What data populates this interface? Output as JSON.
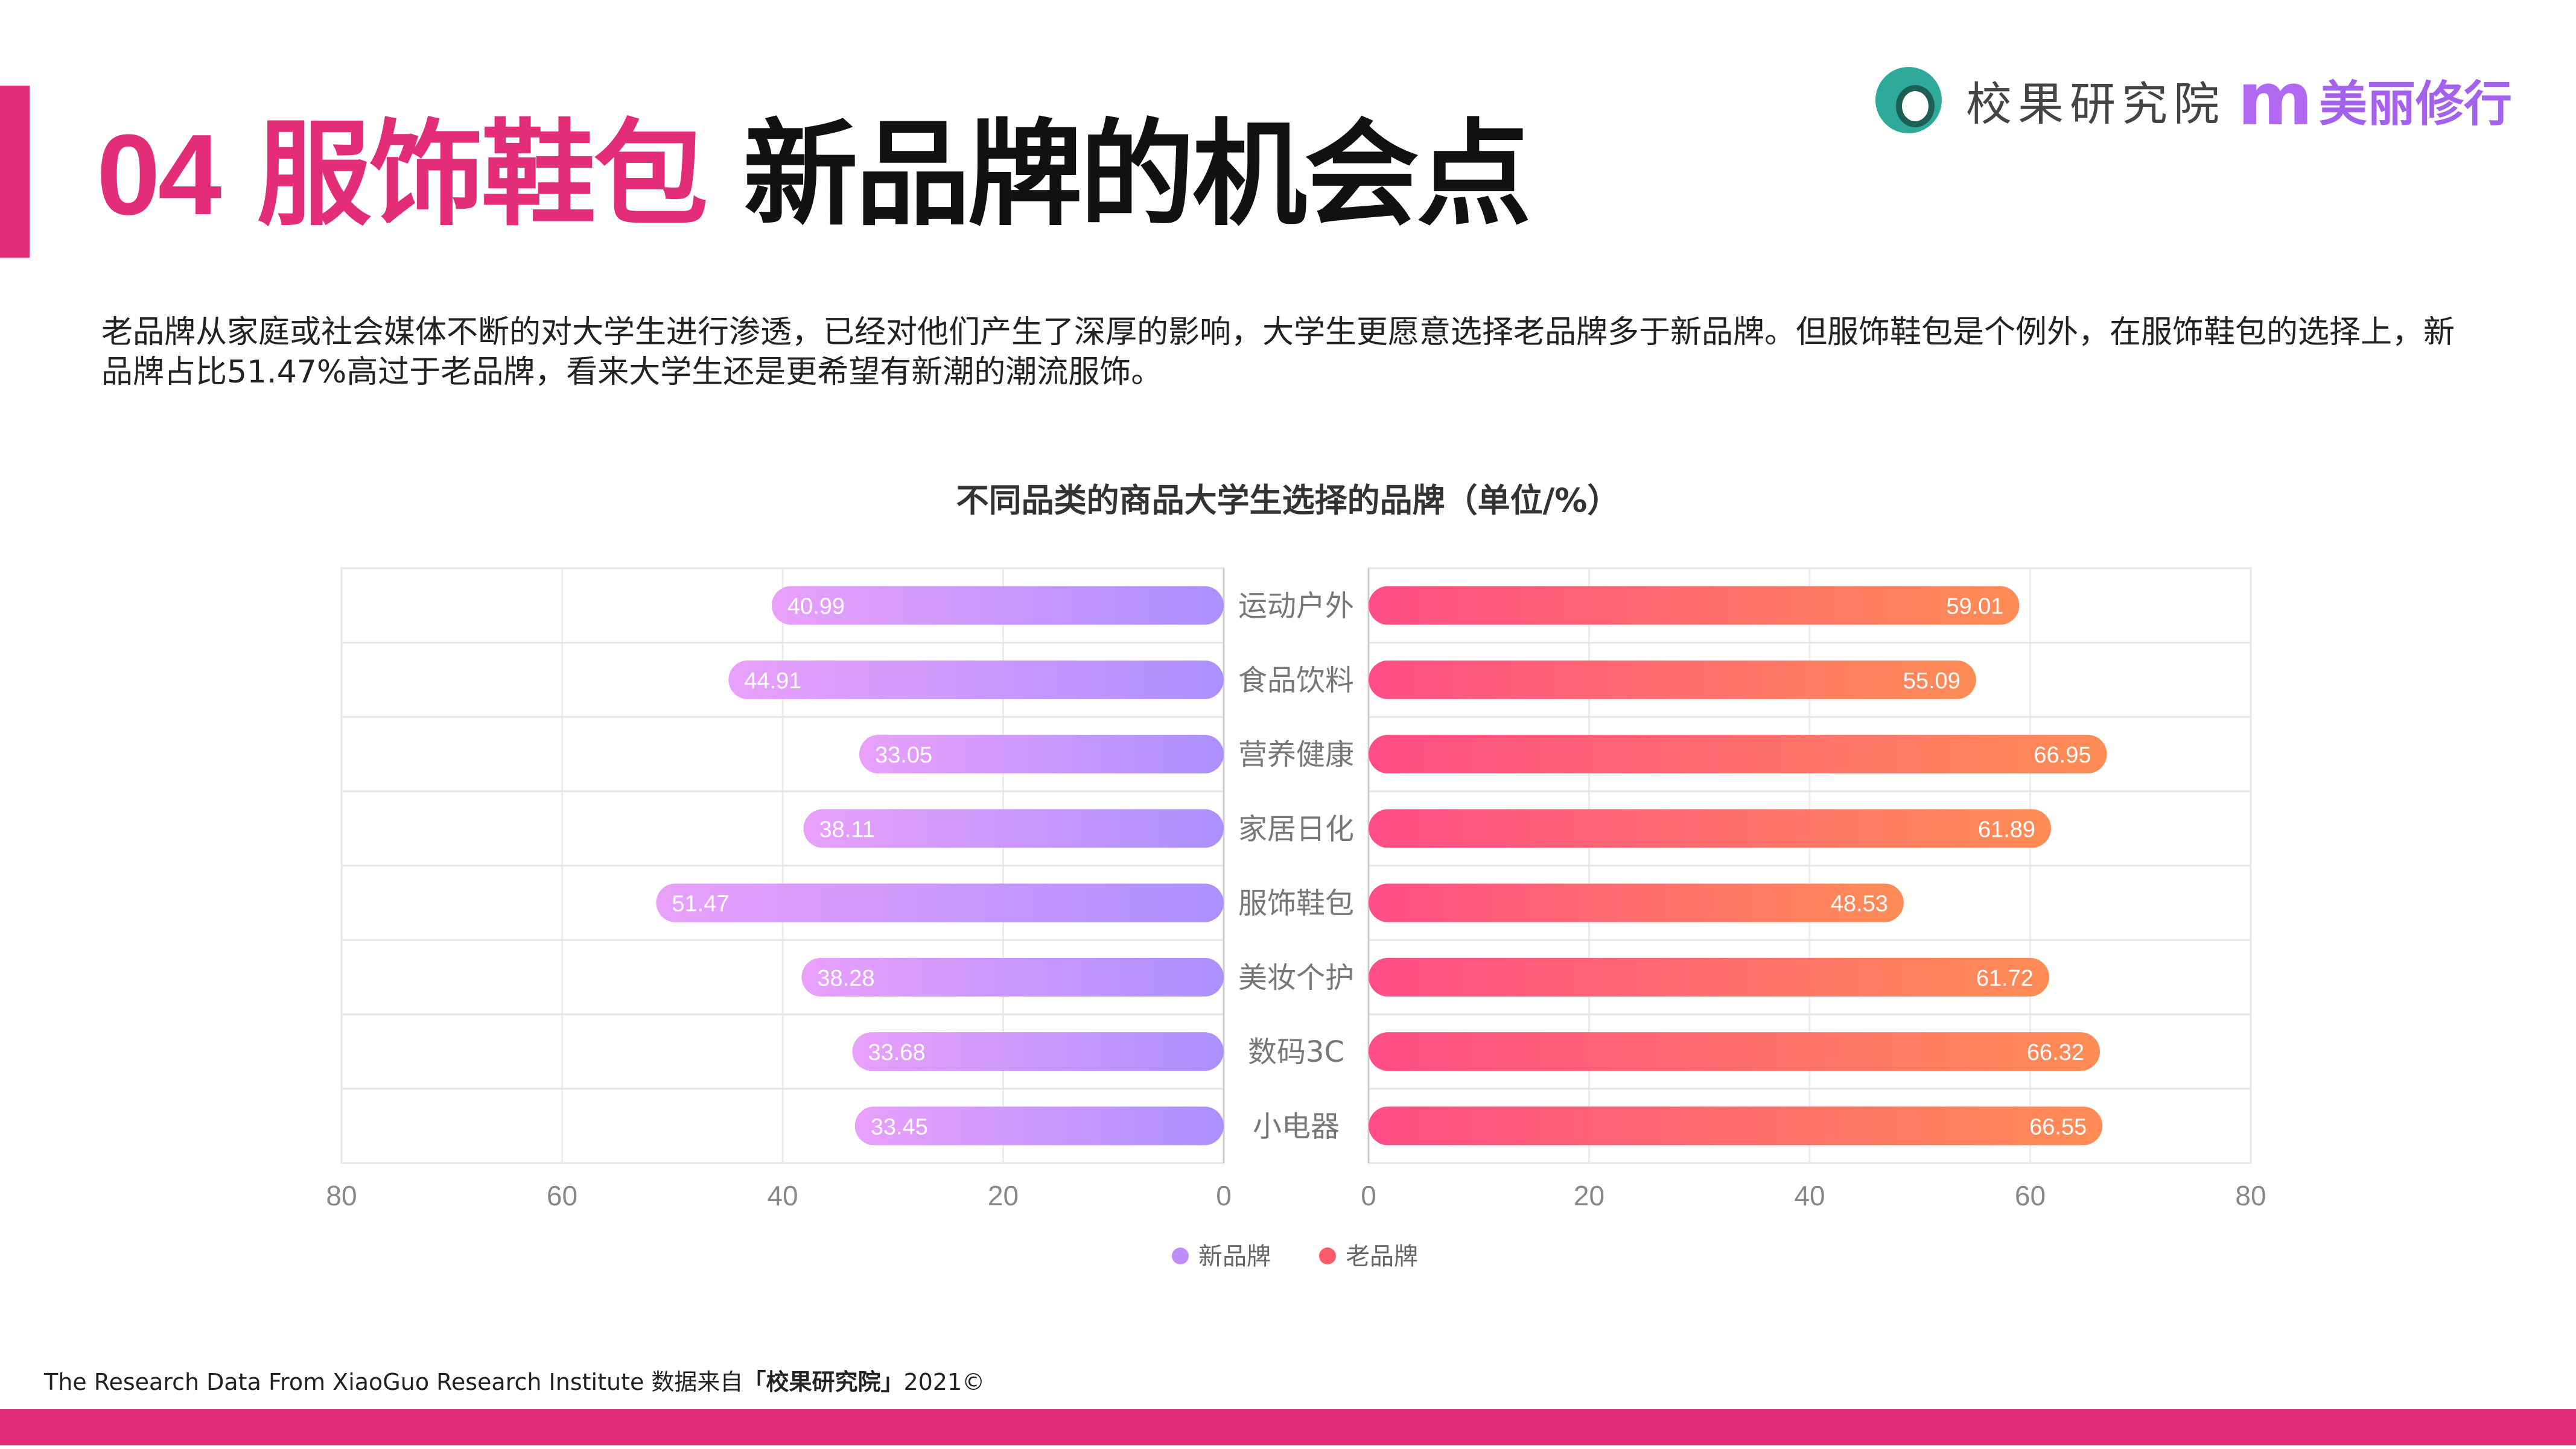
{
  "header": {
    "number": "04",
    "title_pink": "服饰鞋包",
    "title_black": "新品牌的机会点"
  },
  "logo": {
    "name": "校果研究院",
    "m": "m",
    "brand": "美丽修行"
  },
  "paragraph": "老品牌从家庭或社会媒体不断的对大学生进行渗透，已经对他们产生了深厚的影响，大学生更愿意选择老品牌多于新品牌。但服饰鞋包是个例外，在服饰鞋包的选择上，新品牌占比51.47%高过于老品牌，看来大学生还是更希望有新潮的潮流服饰。",
  "footer": {
    "prefix": "The Research Data From XiaoGuo Research Institute 数据来自",
    "brand": "「校果研究院」",
    "suffix": "2021©"
  },
  "colors": {
    "accent": "#E32D78",
    "new_start": "#E9A0FB",
    "new_end": "#AC90FF",
    "old_start": "#FF4E87",
    "old_end": "#FF8C55"
  },
  "chart_data": {
    "type": "bar",
    "title": "不同品类的商品大学生选择的品牌（单位/%）",
    "categories": [
      "运动户外",
      "食品饮料",
      "营养健康",
      "家居日化",
      "服饰鞋包",
      "美妆个护",
      "数码3C",
      "小电器"
    ],
    "series": [
      {
        "name": "新品牌",
        "values": [
          40.99,
          44.91,
          33.05,
          38.11,
          51.47,
          38.28,
          33.68,
          33.45
        ]
      },
      {
        "name": "老品牌",
        "values": [
          59.01,
          55.09,
          66.95,
          61.89,
          48.53,
          61.72,
          66.32,
          66.55
        ]
      }
    ],
    "xlim": [
      0,
      80
    ],
    "ticks": [
      "0",
      "20",
      "40",
      "60",
      "80"
    ],
    "grid": true,
    "legend": "bottom-center"
  }
}
